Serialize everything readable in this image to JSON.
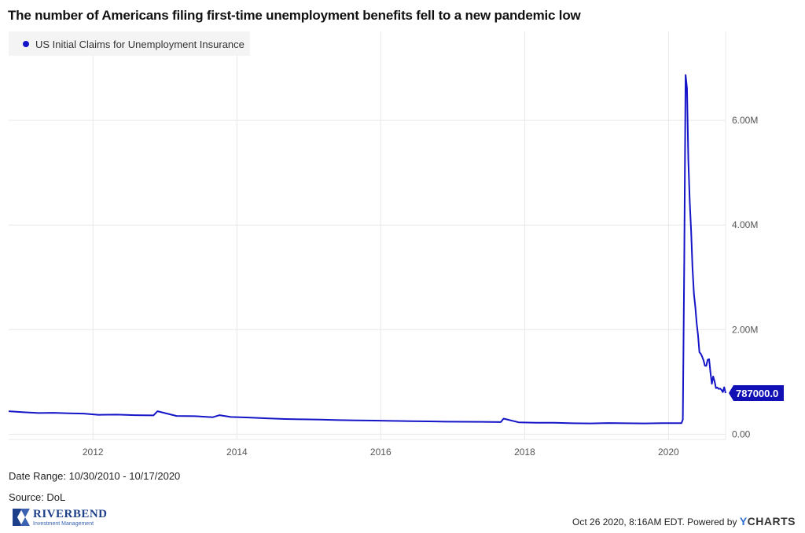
{
  "title": "The number of Americans filing first-time unemployment benefits fell to a new pandemic low",
  "date_range": "Date Range: 10/30/2010 - 10/17/2020",
  "source": "Source: DoL",
  "logo": {
    "brand": "RIVERBEND",
    "tagline": "Investment Management"
  },
  "footer": {
    "timestamp": "Oct 26 2020, 8:16AM EDT. Powered by ",
    "brand_y": "Y",
    "brand_rest": "CHARTS"
  },
  "colors": {
    "series": "#1515c8",
    "grid": "#e8e8e8",
    "badge": "#1010b4"
  },
  "chart_data": {
    "type": "line",
    "title": "The number of Americans filing first-time unemployment benefits fell to a new pandemic low",
    "xlabel": "",
    "ylabel": "",
    "legend_position": "top-left",
    "grid": true,
    "x_ticks": [
      "2012",
      "2014",
      "2016",
      "2018",
      "2020"
    ],
    "y_ticks": [
      "0.00",
      "2.00M",
      "4.00M",
      "6.00M"
    ],
    "ylim": [
      -100000,
      7700000
    ],
    "xlim": [
      "2010-10-30",
      "2020-10-17"
    ],
    "last_value_label": "787000.0",
    "series": [
      {
        "name": "US Initial Claims for Unemployment Insurance",
        "x": [
          "2010-10-30",
          "2011-01-15",
          "2011-04-01",
          "2011-06-15",
          "2011-09-01",
          "2011-11-15",
          "2012-02-01",
          "2012-05-01",
          "2012-08-01",
          "2012-11-03",
          "2012-11-24",
          "2013-03-01",
          "2013-06-01",
          "2013-09-01",
          "2013-10-05",
          "2013-12-01",
          "2014-03-01",
          "2014-06-01",
          "2014-09-01",
          "2014-12-01",
          "2015-03-01",
          "2015-06-01",
          "2015-09-01",
          "2015-12-01",
          "2016-03-01",
          "2016-06-01",
          "2016-09-01",
          "2016-12-01",
          "2017-03-01",
          "2017-06-01",
          "2017-09-02",
          "2017-09-16",
          "2017-12-01",
          "2018-03-01",
          "2018-06-01",
          "2018-09-01",
          "2018-12-01",
          "2019-03-01",
          "2019-06-01",
          "2019-09-01",
          "2019-12-01",
          "2020-03-07",
          "2020-03-14",
          "2020-03-21",
          "2020-03-28",
          "2020-04-04",
          "2020-04-11",
          "2020-04-18",
          "2020-04-25",
          "2020-05-02",
          "2020-05-09",
          "2020-05-16",
          "2020-05-23",
          "2020-05-30",
          "2020-06-06",
          "2020-06-13",
          "2020-06-20",
          "2020-06-27",
          "2020-07-04",
          "2020-07-11",
          "2020-07-18",
          "2020-07-25",
          "2020-08-01",
          "2020-08-08",
          "2020-08-15",
          "2020-08-22",
          "2020-08-29",
          "2020-09-05",
          "2020-09-12",
          "2020-09-19",
          "2020-09-26",
          "2020-10-03",
          "2020-10-10",
          "2020-10-17"
        ],
        "values": [
          440000,
          420000,
          405000,
          410000,
          400000,
          395000,
          370000,
          375000,
          365000,
          360000,
          440000,
          350000,
          345000,
          325000,
          365000,
          330000,
          320000,
          305000,
          290000,
          285000,
          280000,
          270000,
          265000,
          260000,
          255000,
          250000,
          245000,
          240000,
          238000,
          236000,
          232000,
          298000,
          228000,
          220000,
          218000,
          210000,
          206000,
          214000,
          210000,
          206000,
          212000,
          211000,
          282000,
          3307000,
          6867000,
          6615000,
          5237000,
          4442000,
          3867000,
          3176000,
          2687000,
          2446000,
          2123000,
          1897000,
          1566000,
          1540000,
          1482000,
          1413000,
          1310000,
          1307000,
          1422000,
          1434000,
          1186000,
          963000,
          1104000,
          1011000,
          881000,
          893000,
          866000,
          873000,
          849000,
          804000,
          898000,
          787000
        ]
      }
    ]
  }
}
